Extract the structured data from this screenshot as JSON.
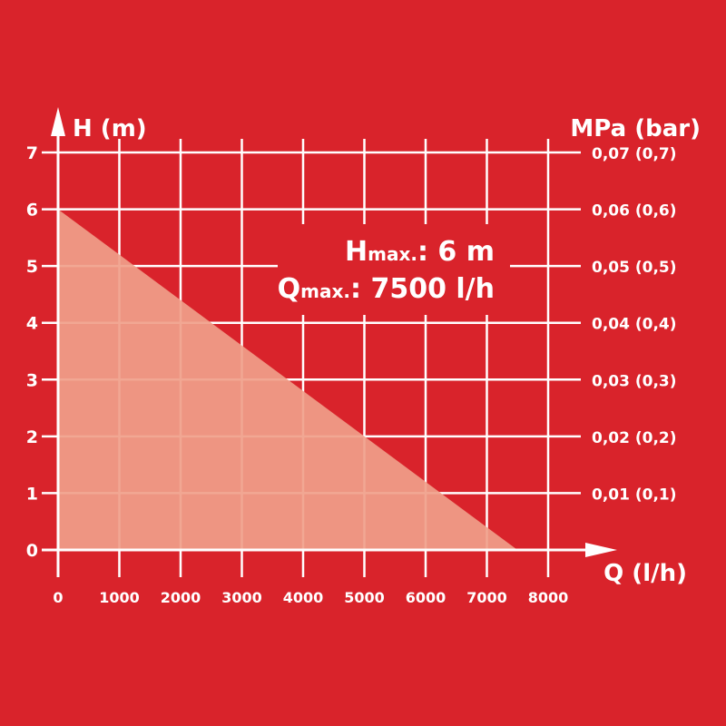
{
  "chart_data": {
    "type": "area",
    "xlabel": "Q (l/h)",
    "ylabel": "H (m)",
    "y2label": "MPa (bar)",
    "xlim": [
      0,
      8000
    ],
    "ylim": [
      0,
      7
    ],
    "grid": true,
    "x_ticks": [
      "0",
      "1000",
      "2000",
      "3000",
      "4000",
      "5000",
      "6000",
      "7000",
      "8000"
    ],
    "y_ticks": [
      "0",
      "1",
      "2",
      "3",
      "4",
      "5",
      "6",
      "7"
    ],
    "y2_ticks": [
      "",
      "0,01 (0,1)",
      "0,02 (0,2)",
      "0,03 (0,3)",
      "0,04 (0,4)",
      "0,05 (0,5)",
      "0,06 (0,6)",
      "0,07 (0,7)"
    ],
    "series": [
      {
        "x": [
          0,
          7500
        ],
        "y": [
          6,
          0
        ]
      }
    ],
    "annotation": {
      "hmax_label": "H",
      "hmax_sub": "max.",
      "hmax_value": ": 6 m",
      "qmax_label": "Q",
      "qmax_sub": "max.",
      "qmax_value": ": 7500 l/h"
    },
    "colors": {
      "background": "#d9232b",
      "fill": "#f0a08a",
      "grid": "#ffffff"
    }
  }
}
